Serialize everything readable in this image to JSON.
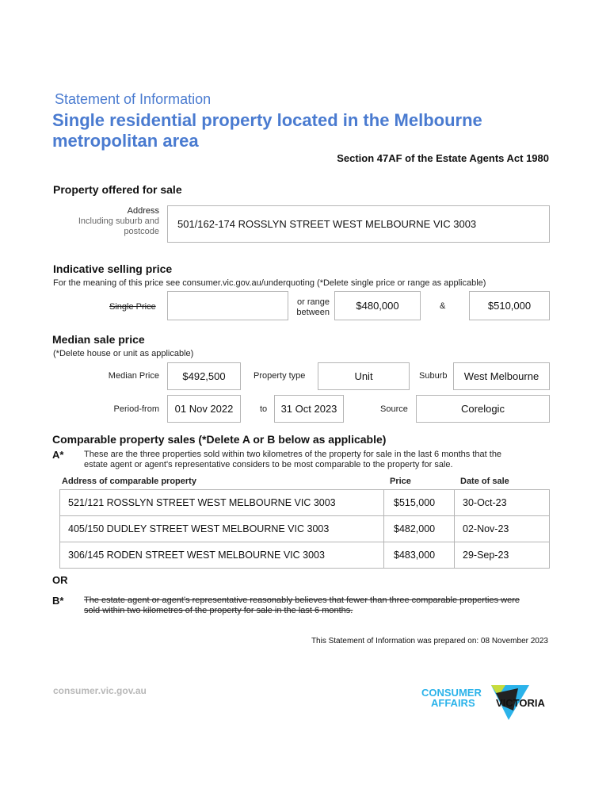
{
  "header": {
    "subtitle": "Statement of Information",
    "title_line1": "Single residential property located in the Melbourne",
    "title_line2": "metropolitan area",
    "act": "Section 47AF of the Estate Agents Act 1980"
  },
  "property": {
    "heading": "Property offered for sale",
    "label_line1": "Address",
    "label_line2": "Including suburb and",
    "label_line3": "postcode",
    "address": "501/162-174 ROSSLYN STREET WEST MELBOURNE VIC 3003"
  },
  "indicative": {
    "heading": "Indicative selling price",
    "note": "For the meaning of this price see consumer.vic.gov.au/underquoting (*Delete single price or range as applicable)",
    "single_label": "Single Price",
    "single_value": "",
    "range_label_line1": "or range",
    "range_label_line2": "between",
    "low": "$480,000",
    "amp": "&",
    "high": "$510,000"
  },
  "median": {
    "heading": "Median sale price",
    "note": "(*Delete house or unit as applicable)",
    "price_label": "Median Price",
    "price": "$492,500",
    "type_label": "Property type",
    "type": "Unit",
    "suburb_label": "Suburb",
    "suburb": "West Melbourne",
    "from_label": "Period-from",
    "from": "01 Nov 2022",
    "to_label": "to",
    "to": "31 Oct 2023",
    "source_label": "Source",
    "source": "Corelogic"
  },
  "comparable": {
    "heading": "Comparable property sales (*Delete A or B below as applicable)",
    "a_marker": "A*",
    "a_text_line1": "These are the three properties sold within two kilometres of the property for sale in the last 6 months that the",
    "a_text_line2": "estate agent or agent's representative considers to be most comparable to the property for sale.",
    "columns": [
      "Address of comparable property",
      "Price",
      "Date of sale"
    ],
    "rows": [
      {
        "address": "521/121 ROSSLYN STREET WEST MELBOURNE VIC 3003",
        "price": "$515,000",
        "date": "30-Oct-23"
      },
      {
        "address": "405/150 DUDLEY STREET WEST MELBOURNE VIC 3003",
        "price": "$482,000",
        "date": "02-Nov-23"
      },
      {
        "address": "306/145 RODEN STREET WEST MELBOURNE VIC 3003",
        "price": "$483,000",
        "date": "29-Sep-23"
      }
    ],
    "or": "OR",
    "b_marker": "B*",
    "b_text_line1": "The estate agent or agent's representative reasonably believes that fewer than three comparable properties were",
    "b_text_line2": "sold within two kilometres of the property for sale in the last 6 months."
  },
  "footer": {
    "prepared": "This Statement of Information was prepared on: 08 November 2023",
    "website": "consumer.vic.gov.au",
    "logo_text": "CONSUMER AFFAIRS VICTORIA"
  },
  "colors": {
    "brand_blue": "#4a7bd0",
    "logo_cyan": "#2bb3ea"
  }
}
